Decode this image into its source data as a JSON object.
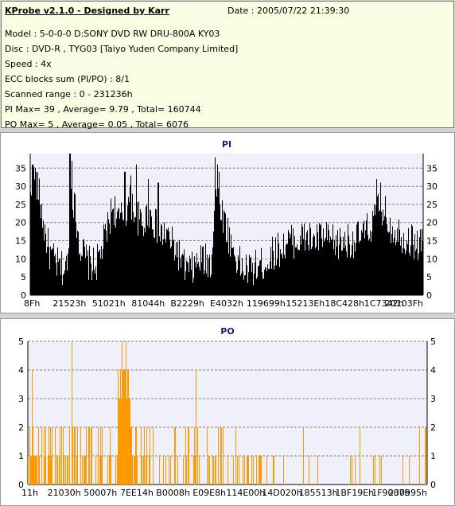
{
  "info": {
    "title": "KProbe v2.1.0 - Designed by Karr",
    "date": "Date : 2005/07/22 21:39:30",
    "lines": [
      "Model : 5-0-0-0 D:SONY     DVD RW DRU-800A  KY03",
      "Disc : DVD-R , TYG03 [Taiyo Yuden Company Limited]",
      "Speed : 4x",
      "ECC blocks sum (PI/PO) : 8/1",
      "Scanned range : 0 - 231236h",
      "PI Max= 39 , Average= 9.79 , Total= 160744",
      "PO Max= 5 , Average= 0.05 , Total= 6076"
    ]
  },
  "colors": {
    "pi_fill": "#000000",
    "po_fill": "#ff9900",
    "plot_bg": "#f0f0fa",
    "grid": "#808080",
    "title": "#1a1a80"
  },
  "chart_data": [
    {
      "type": "area",
      "title": "PI",
      "ylim": [
        0,
        39
      ],
      "yticks": [
        0,
        5,
        10,
        15,
        20,
        25,
        30,
        35
      ],
      "grid": true,
      "xtick_labels": [
        "8Fh",
        "21523h",
        "51021h",
        "81044h",
        "B2229h",
        "E4032h",
        "119699h",
        "15213Eh",
        "18C428h",
        "1C7342h",
        "20103Fh"
      ],
      "profile": [
        [
          0,
          26
        ],
        [
          0.01,
          33
        ],
        [
          0.02,
          29
        ],
        [
          0.035,
          18
        ],
        [
          0.05,
          11
        ],
        [
          0.07,
          8
        ],
        [
          0.085,
          7
        ],
        [
          0.095,
          8
        ],
        [
          0.1,
          30
        ],
        [
          0.11,
          26
        ],
        [
          0.125,
          14
        ],
        [
          0.145,
          9
        ],
        [
          0.165,
          8
        ],
        [
          0.18,
          12
        ],
        [
          0.195,
          18
        ],
        [
          0.21,
          25
        ],
        [
          0.225,
          20
        ],
        [
          0.24,
          23
        ],
        [
          0.255,
          26
        ],
        [
          0.27,
          22
        ],
        [
          0.285,
          19
        ],
        [
          0.3,
          23
        ],
        [
          0.315,
          20
        ],
        [
          0.33,
          16
        ],
        [
          0.345,
          17
        ],
        [
          0.36,
          14
        ],
        [
          0.375,
          12
        ],
        [
          0.385,
          9
        ],
        [
          0.395,
          7
        ],
        [
          0.41,
          7
        ],
        [
          0.42,
          8
        ],
        [
          0.435,
          10
        ],
        [
          0.45,
          9
        ],
        [
          0.46,
          9
        ],
        [
          0.47,
          29
        ],
        [
          0.48,
          26
        ],
        [
          0.495,
          20
        ],
        [
          0.51,
          14
        ],
        [
          0.525,
          10
        ],
        [
          0.54,
          7
        ],
        [
          0.56,
          7
        ],
        [
          0.58,
          8
        ],
        [
          0.6,
          9
        ],
        [
          0.62,
          12
        ],
        [
          0.64,
          13
        ],
        [
          0.66,
          15
        ],
        [
          0.68,
          15
        ],
        [
          0.7,
          16
        ],
        [
          0.72,
          15
        ],
        [
          0.74,
          16
        ],
        [
          0.76,
          15
        ],
        [
          0.78,
          14
        ],
        [
          0.8,
          15
        ],
        [
          0.82,
          15
        ],
        [
          0.84,
          16
        ],
        [
          0.86,
          18
        ],
        [
          0.875,
          21
        ],
        [
          0.885,
          25
        ],
        [
          0.895,
          24
        ],
        [
          0.905,
          22
        ],
        [
          0.915,
          19
        ],
        [
          0.93,
          18
        ],
        [
          0.95,
          16
        ],
        [
          0.97,
          15
        ],
        [
          0.985,
          14
        ],
        [
          1.0,
          15
        ]
      ],
      "spikes": [
        [
          0.005,
          36
        ],
        [
          0.012,
          35
        ],
        [
          0.1,
          39
        ],
        [
          0.105,
          37
        ],
        [
          0.24,
          34
        ],
        [
          0.255,
          33
        ],
        [
          0.27,
          36
        ],
        [
          0.3,
          32
        ],
        [
          0.325,
          31
        ],
        [
          0.47,
          38
        ],
        [
          0.475,
          36
        ],
        [
          0.48,
          34
        ],
        [
          0.88,
          32
        ],
        [
          0.89,
          31
        ]
      ],
      "noise": 5,
      "seed": 17
    },
    {
      "type": "bar",
      "title": "PO",
      "ylim": [
        0,
        5
      ],
      "yticks": [
        0,
        1,
        2,
        3,
        4,
        5
      ],
      "grid": true,
      "xtick_labels": [
        "11h",
        "21030h",
        "50007h",
        "7EE14h",
        "B0008h",
        "E09E8h",
        "114E00h",
        "14D020h",
        "185513h",
        "1BF19Eh",
        "1F9007h",
        "230995h"
      ],
      "blocks": [
        {
          "from": 0.0,
          "to": 0.1,
          "base": 1,
          "peak": 2,
          "density": 0.75
        },
        {
          "from": 0.1,
          "to": 0.2,
          "base": 1,
          "peak": 2,
          "density": 0.45
        },
        {
          "from": 0.2,
          "to": 0.225,
          "base": 1,
          "peak": 2,
          "density": 0.6
        },
        {
          "from": 0.225,
          "to": 0.255,
          "base": 3,
          "peak": 4,
          "density": 1.0
        },
        {
          "from": 0.255,
          "to": 0.3,
          "base": 1,
          "peak": 2,
          "density": 0.65
        },
        {
          "from": 0.3,
          "to": 0.5,
          "base": 1,
          "peak": 2,
          "density": 0.3
        },
        {
          "from": 0.5,
          "to": 0.6,
          "base": 1,
          "peak": 1,
          "density": 0.25
        },
        {
          "from": 0.6,
          "to": 1.0,
          "base": 1,
          "peak": 1,
          "density": 0.07
        }
      ],
      "spikes": [
        [
          0.01,
          4
        ],
        [
          0.11,
          5
        ],
        [
          0.235,
          5
        ],
        [
          0.245,
          5
        ],
        [
          0.42,
          4
        ],
        [
          0.27,
          2
        ],
        [
          0.52,
          2
        ],
        [
          0.69,
          2
        ],
        [
          0.83,
          2
        ],
        [
          0.98,
          2
        ],
        [
          0.995,
          2
        ]
      ],
      "seed": 5
    }
  ]
}
